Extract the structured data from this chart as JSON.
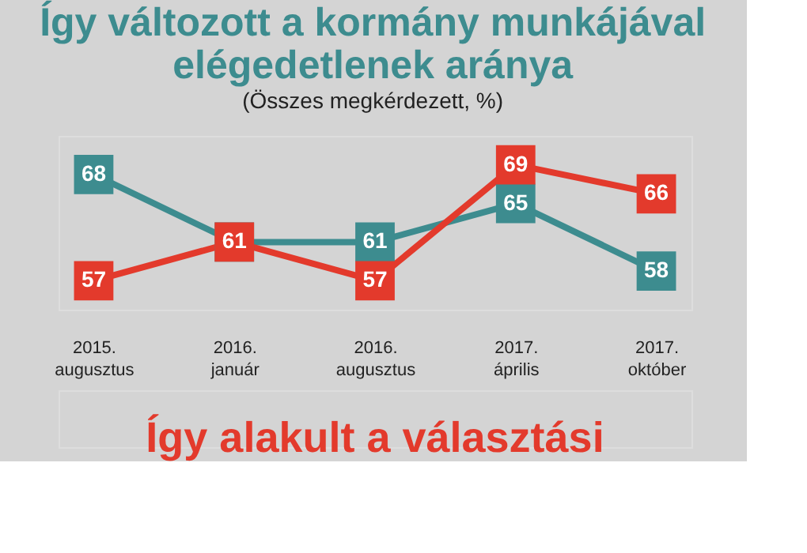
{
  "chart_data": {
    "type": "line",
    "title": "Így változott a kormány munkájával elégedetlenek aránya",
    "subtitle": "(Összes megkérdezett, %)",
    "categories": [
      "2015.\naugusztus",
      "2016.\njanuár",
      "2016.\naugusztus",
      "2017.\náprilis",
      "2017.\noktóber"
    ],
    "series": [
      {
        "color": "#3d8c8f",
        "values": [
          68,
          61,
          61,
          65,
          58
        ],
        "value_labels": [
          "68",
          null,
          "61",
          "65",
          "58"
        ]
      },
      {
        "color": "#e33a2c",
        "values": [
          57,
          61,
          57,
          69,
          66
        ],
        "value_labels": [
          "57",
          "61",
          "57",
          "69",
          "66"
        ]
      }
    ],
    "marker": "square",
    "grid": false,
    "tick_labels": "x",
    "annotations": [
      "Így alakult a választási"
    ]
  }
}
